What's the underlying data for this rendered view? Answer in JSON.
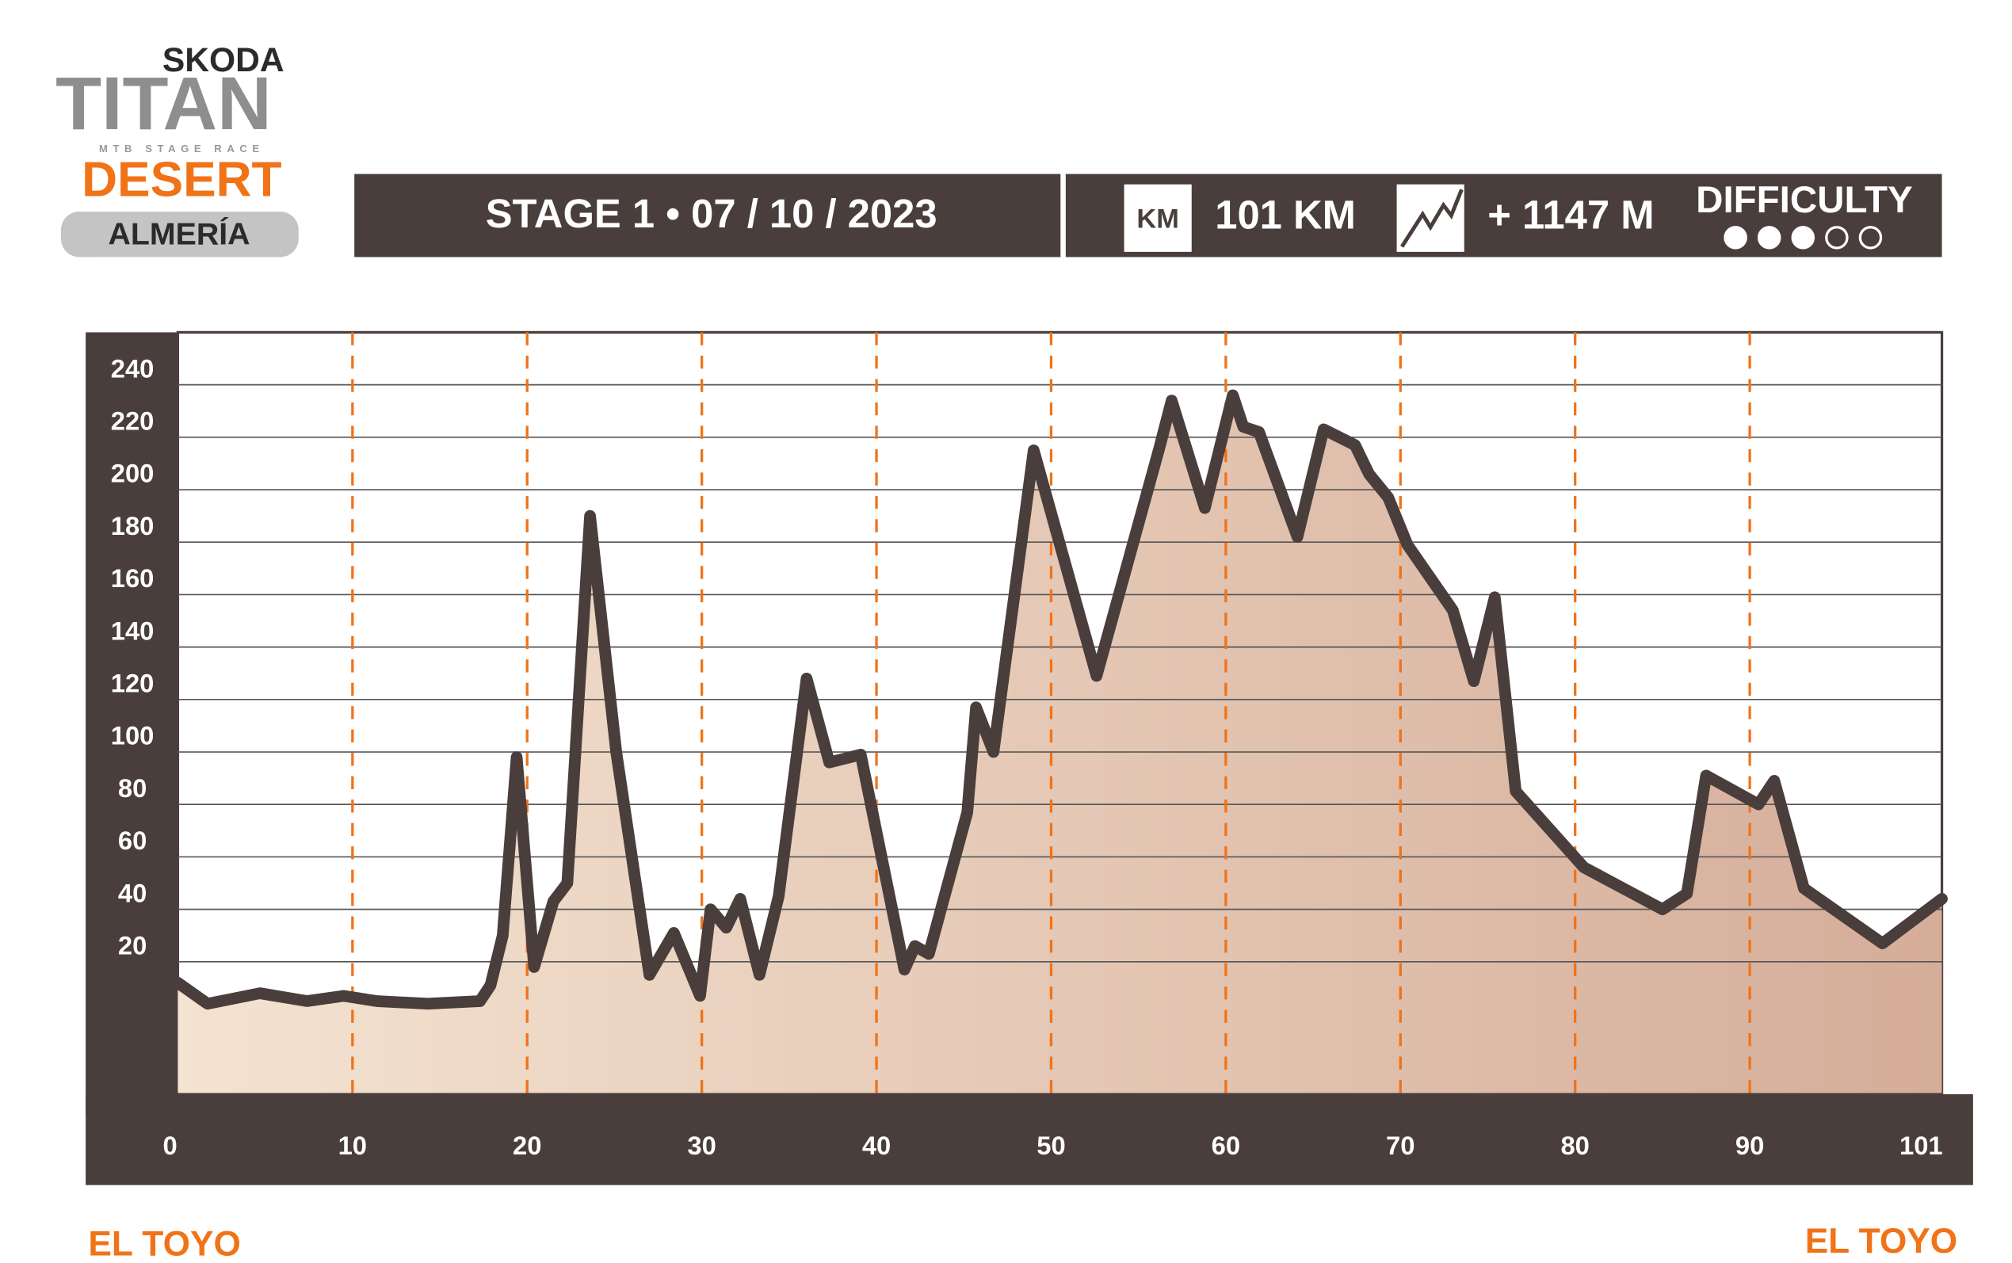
{
  "header": {
    "brand": "SKODA",
    "logo": "TITAN",
    "tagline": "MTB STAGE RACE",
    "event": "DESERT",
    "location": "ALMERÍA",
    "stage": "STAGE 1 • 07 / 10 / 2023",
    "km_icon": "KM",
    "distance": "101 KM",
    "elevation_gain": "+ 1147 M",
    "difficulty": {
      "label": "DIFFICULTY",
      "level": 3,
      "max": 5
    }
  },
  "chart_data": {
    "type": "area",
    "line_color": "#4a3e3c",
    "fill_colors": [
      "#f4e3d1",
      "#d5ad99"
    ],
    "grid": true,
    "xlim": [
      0,
      101
    ],
    "xticks": [
      0,
      10,
      20,
      30,
      40,
      50,
      60,
      70,
      80,
      90,
      101
    ],
    "ylim": [
      -30,
      260
    ],
    "yticks": [
      20,
      40,
      60,
      80,
      100,
      120,
      140,
      160,
      180,
      200,
      220,
      240
    ],
    "x": [
      0,
      1.7,
      4.7,
      7.4,
      9.5,
      11.4,
      14.3,
      17.3,
      17.9,
      18.6,
      19.4,
      20.4,
      21.5,
      22.3,
      23.6,
      25.1,
      27.0,
      28.4,
      29.9,
      30.5,
      31.4,
      32.2,
      33.3,
      34.4,
      36.0,
      37.3,
      39.1,
      41.6,
      42.2,
      43.0,
      45.2,
      45.7,
      46.7,
      49.0,
      52.6,
      56.2,
      56.9,
      58.8,
      60.4,
      61.0,
      61.9,
      64.1,
      65.6,
      67.4,
      68.2,
      69.3,
      70.4,
      73.0,
      74.2,
      75.4,
      76.6,
      80.5,
      85.0,
      86.4,
      87.5,
      90.5,
      91.4,
      93.1,
      97.6,
      101
    ],
    "values": [
      12,
      4,
      8,
      5,
      7,
      5,
      4,
      5,
      11,
      30,
      98,
      18,
      43,
      50,
      190,
      100,
      15,
      31,
      7,
      40,
      33,
      44,
      15,
      45,
      128,
      96,
      99,
      17,
      26,
      23,
      77,
      117,
      100,
      215,
      129,
      216,
      234,
      193,
      236,
      224,
      222,
      182,
      223,
      217,
      206,
      197,
      179,
      154,
      127,
      159,
      85,
      56,
      40,
      46,
      91,
      80,
      89,
      48,
      27,
      44
    ]
  },
  "footer": {
    "start": "EL TOYO",
    "finish": "EL TOYO"
  }
}
